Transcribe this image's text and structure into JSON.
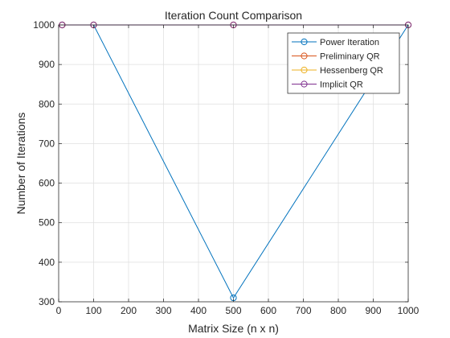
{
  "chart_data": {
    "type": "line",
    "title": "Iteration Count Comparison",
    "xlabel": "Matrix Size (n x n)",
    "ylabel": "Number of Iterations",
    "xlim": [
      0,
      1000
    ],
    "ylim": [
      300,
      1000
    ],
    "xticks": [
      0,
      100,
      200,
      300,
      400,
      500,
      600,
      700,
      800,
      900,
      1000
    ],
    "yticks": [
      300,
      400,
      500,
      600,
      700,
      800,
      900,
      1000
    ],
    "xtick_labels": [
      "0",
      "100",
      "200",
      "300",
      "400",
      "500",
      "600",
      "700",
      "800",
      "900",
      "1000"
    ],
    "ytick_labels": [
      "300",
      "400",
      "500",
      "600",
      "700",
      "800",
      "900",
      "1000"
    ],
    "grid": true,
    "legend_position": "top-right",
    "marker": "circle-open",
    "series": [
      {
        "name": "Power Iteration",
        "color": "#0072BD",
        "x": [
          10,
          100,
          500,
          1000
        ],
        "y": [
          1000,
          1000,
          310,
          1000
        ]
      },
      {
        "name": "Preliminary QR",
        "color": "#D95319",
        "x": [
          10,
          100,
          500,
          1000
        ],
        "y": [
          1000,
          1000,
          1000,
          1000
        ]
      },
      {
        "name": "Hessenberg QR",
        "color": "#EDB120",
        "x": [
          10,
          100,
          500,
          1000
        ],
        "y": [
          1000,
          1000,
          1000,
          1000
        ]
      },
      {
        "name": "Implicit QR",
        "color": "#7E2F8E",
        "x": [
          10,
          100,
          500,
          1000
        ],
        "y": [
          1000,
          1000,
          1000,
          1000
        ]
      }
    ]
  }
}
